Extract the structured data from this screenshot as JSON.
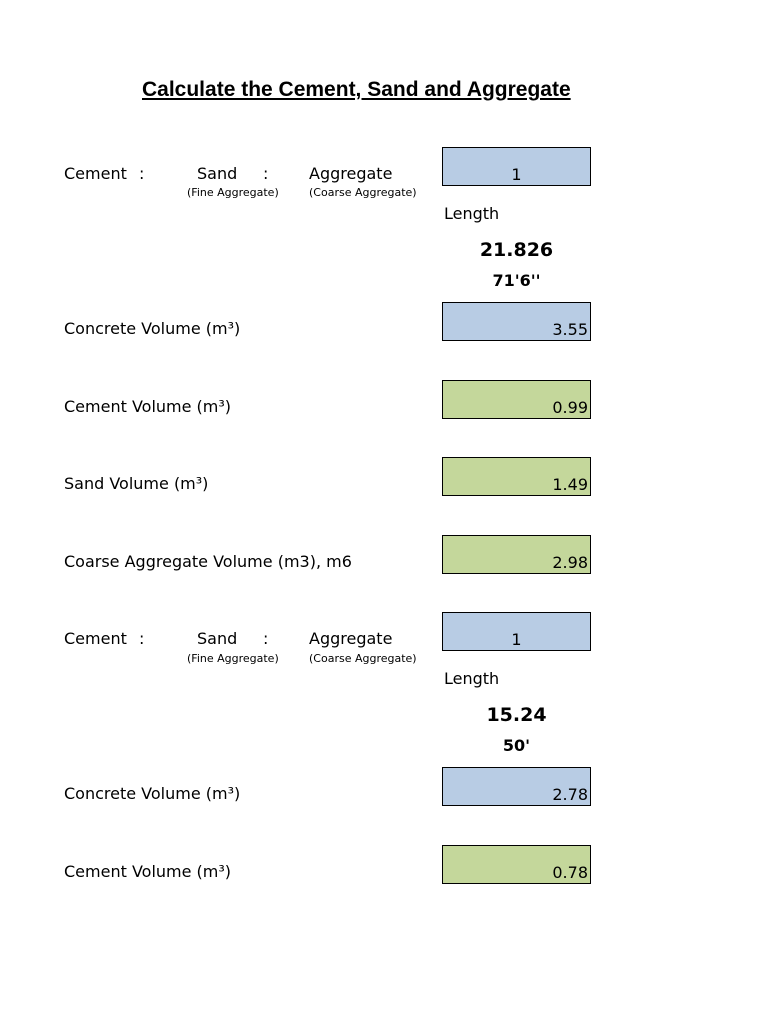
{
  "title": "Calculate the Cement, Sand and Aggregate",
  "sections": [
    {
      "ratio": {
        "cement_label": "Cement",
        "sep1": ":",
        "sand_label": "Sand",
        "sep2": ":",
        "aggregate_label": "Aggregate",
        "sand_sub": "(Fine Aggregate)",
        "aggregate_sub": "(Coarse Aggregate)",
        "value": "1"
      },
      "length_label": "Length",
      "length_m": "21.826",
      "length_ft": "71'6''",
      "concrete_volume": {
        "label": "Concrete Volume (m³)",
        "value": "3.55"
      },
      "cement_volume": {
        "label": "Cement Volume (m³)",
        "value": "0.99"
      },
      "sand_volume": {
        "label": "Sand Volume (m³)",
        "value": "1.49"
      },
      "coarse_volume": {
        "label": "Coarse Aggregate Volume (m3), m6",
        "value": "2.98"
      }
    },
    {
      "ratio": {
        "cement_label": "Cement",
        "sep1": ":",
        "sand_label": "Sand",
        "sep2": ":",
        "aggregate_label": "Aggregate",
        "sand_sub": "(Fine Aggregate)",
        "aggregate_sub": "(Coarse Aggregate)",
        "value": "1"
      },
      "length_label": "Length",
      "length_m": "15.24",
      "length_ft": "50'",
      "concrete_volume": {
        "label": "Concrete Volume (m³)",
        "value": "2.78"
      },
      "cement_volume": {
        "label": "Cement Volume (m³)",
        "value": "0.78"
      }
    }
  ],
  "colors": {
    "input_fill": "#b8cce4",
    "output_fill": "#c4d79b"
  }
}
